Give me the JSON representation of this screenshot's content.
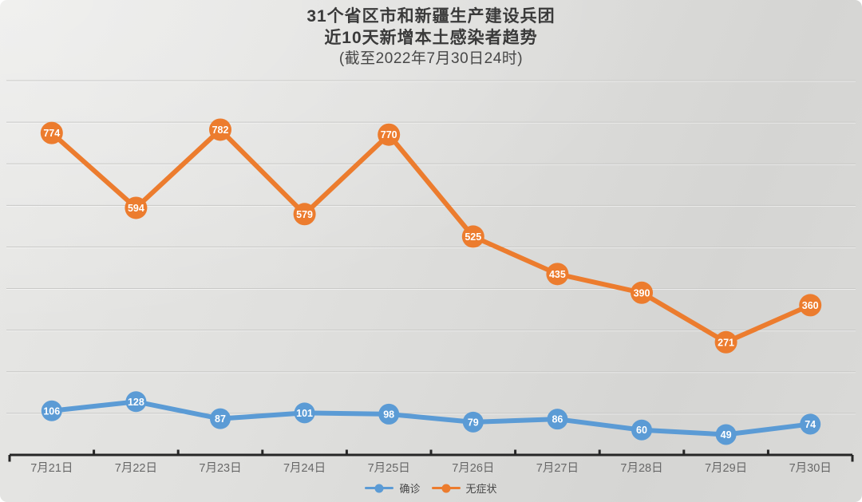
{
  "title": {
    "line1": "31个省区市和新疆生产建设兵团",
    "line2": "近10天新增本土感染者趋势",
    "subtitle": "(截至2022年7月30日24时)"
  },
  "chart_data": {
    "type": "line",
    "categories": [
      "7月21日",
      "7月22日",
      "7月23日",
      "7月24日",
      "7月25日",
      "7月26日",
      "7月27日",
      "7月28日",
      "7月29日",
      "7月30日"
    ],
    "series": [
      {
        "key": "confirmed",
        "name": "确诊",
        "color": "#5b9bd5",
        "values": [
          106,
          128,
          87,
          101,
          98,
          79,
          86,
          60,
          49,
          74
        ]
      },
      {
        "key": "asymptomatic",
        "name": "无症状",
        "color": "#ec7c2e",
        "values": [
          774,
          594,
          782,
          579,
          770,
          525,
          435,
          390,
          271,
          360
        ]
      }
    ],
    "title": "31个省区市和新疆生产建设兵团近10天新增本土感染者趋势",
    "xlabel": "",
    "ylabel": "",
    "ylim": [
      0,
      900
    ],
    "grid_interval": 100,
    "grid": true,
    "y_axis_labels_visible": false,
    "point_labels": true,
    "legend_position": "bottom-center"
  },
  "colors": {
    "point_label_text": "#ffffff",
    "gridline": "#c8c8c6",
    "axis": "#262626",
    "x_label_text": "#686868",
    "background_light": "#e8e8e6",
    "background_dark": "#d5d5d3"
  }
}
